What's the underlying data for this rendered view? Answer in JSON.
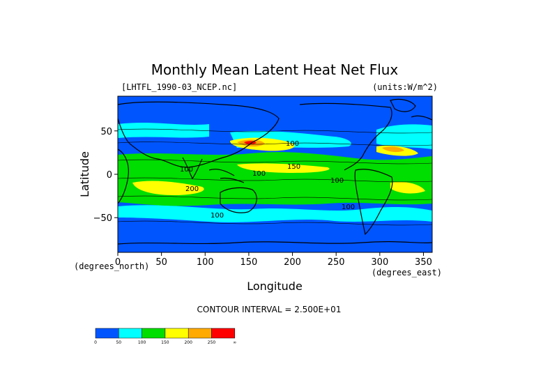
{
  "chart_data": {
    "type": "heatmap",
    "title": "Monthly Mean Latent Heat Net Flux",
    "subtitle_left": "[LHTFL_1990-03_NCEP.nc]",
    "subtitle_right": "(units:W/m^2)",
    "xlabel": "Longitude",
    "ylabel": "Latitude",
    "x_unit_label": "(degrees_east)",
    "y_unit_label": "(degrees_north)",
    "xlim": [
      0,
      360
    ],
    "ylim": [
      -90,
      90
    ],
    "x_ticks": [
      0,
      50,
      100,
      150,
      200,
      250,
      300,
      350
    ],
    "y_ticks": [
      -50,
      0,
      50
    ],
    "y_tick_labels": [
      "−50",
      "0",
      "50"
    ],
    "contour_interval_text": "CONTOUR INTERVAL = 2.500E+01",
    "contour_labels": [
      "100",
      "150",
      "100",
      "100",
      "100",
      "200",
      "100",
      "100"
    ],
    "legend": {
      "levels": [
        "0",
        "50",
        "100",
        "150",
        "200",
        "250",
        "∞"
      ],
      "colors": [
        "#0055ff",
        "#00ffff",
        "#00dd00",
        "#ffff00",
        "#ffaa00",
        "#ff0000"
      ]
    }
  }
}
